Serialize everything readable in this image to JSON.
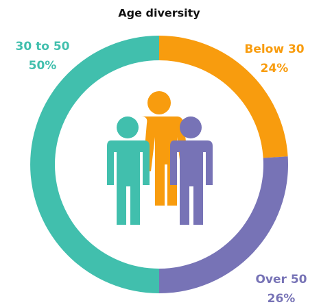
{
  "chart_data": {
    "type": "donut",
    "title": "Age diversity",
    "categories": [
      "Below 30",
      "Over 50",
      "30 to 50"
    ],
    "values": [
      24,
      26,
      50
    ],
    "value_labels": [
      "24%",
      "26%",
      "50%"
    ],
    "colors": [
      "#f89c0e",
      "#7773b6",
      "#41bfad"
    ]
  }
}
